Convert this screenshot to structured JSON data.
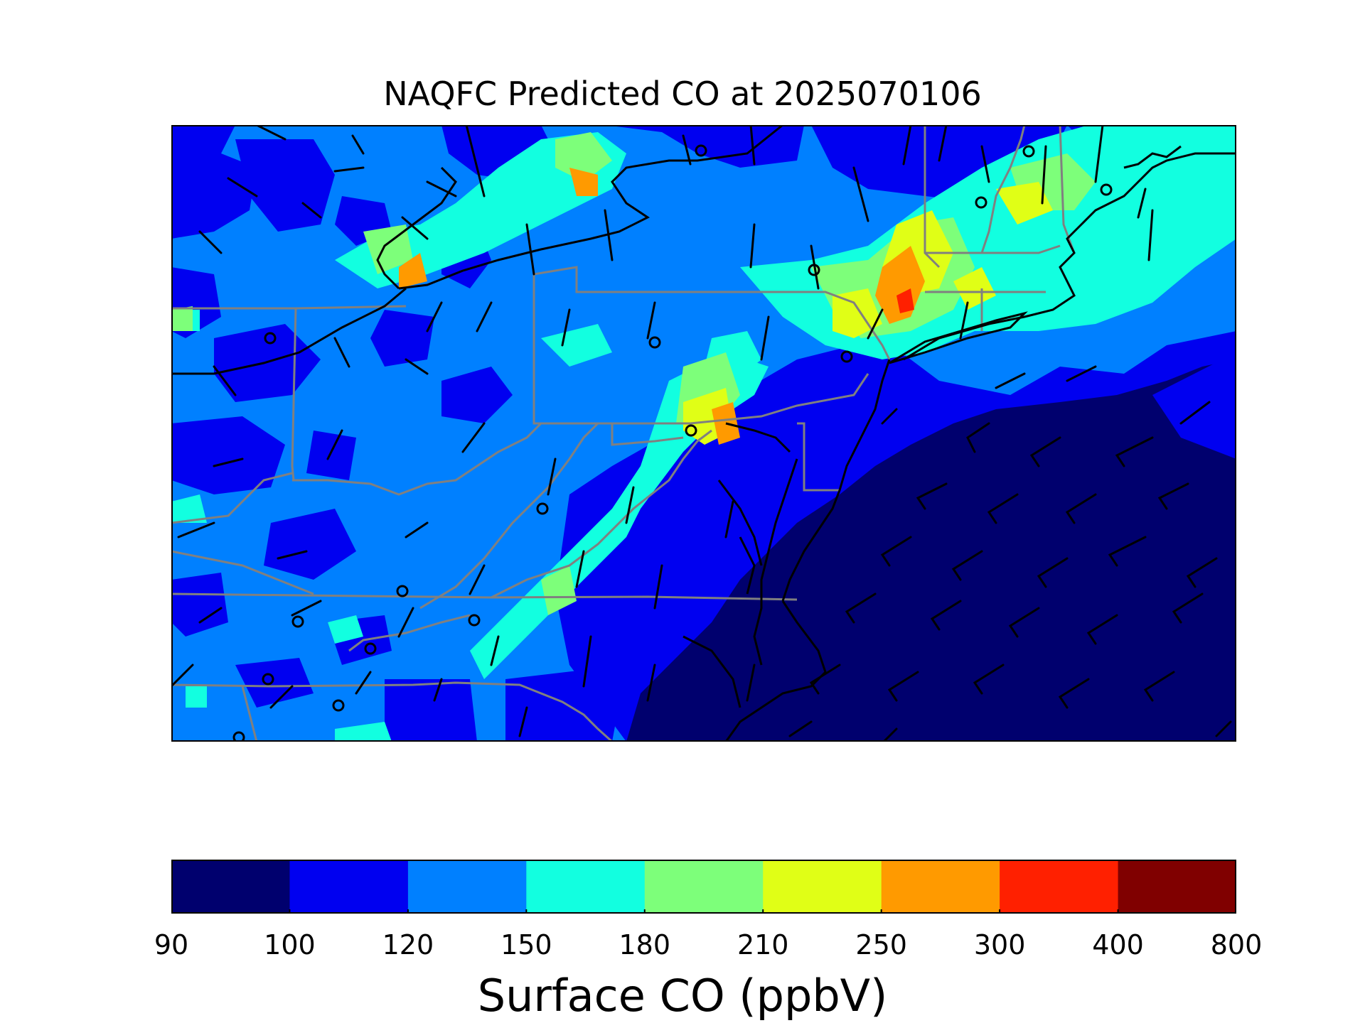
{
  "title": "NAQFC Predicted CO at 2025070106",
  "colorbar": {
    "label": "Surface CO (ppbV)",
    "ticks": [
      "90",
      "100",
      "120",
      "150",
      "180",
      "210",
      "250",
      "300",
      "400",
      "800"
    ],
    "colors": [
      "#00006e",
      "#0000f0",
      "#0080ff",
      "#12ffe0",
      "#7dff7a",
      "#e0ff16",
      "#ff9a00",
      "#ff2000",
      "#800000"
    ]
  },
  "map": {
    "field": "surface CO concentration",
    "overlays": [
      "wind-barbs",
      "station-circles",
      "coastlines",
      "state-borders"
    ],
    "colors": {
      "coastline": "#000000",
      "state_border": "#808080",
      "barb": "#000000"
    }
  }
}
